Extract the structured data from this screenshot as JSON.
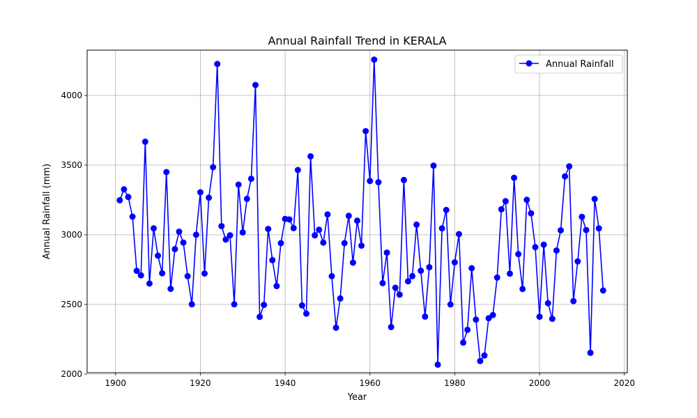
{
  "chart_data": {
    "type": "line",
    "title": "Annual Rainfall Trend in KERALA",
    "xlabel": "Year",
    "ylabel": "Annual Rainfall (mm)",
    "xlim": [
      1893.3,
      2020.7
    ],
    "ylim": [
      2010,
      4325
    ],
    "xticks": [
      1900,
      1920,
      1940,
      1960,
      1980,
      2000,
      2020
    ],
    "yticks": [
      2000,
      2500,
      3000,
      3500,
      4000
    ],
    "grid": true,
    "legend_position": "top-right",
    "series": [
      {
        "name": "Annual Rainfall",
        "color": "#0000ff",
        "marker": "circle",
        "x": [
          1901,
          1902,
          1903,
          1904,
          1905,
          1906,
          1907,
          1908,
          1909,
          1910,
          1911,
          1912,
          1913,
          1914,
          1915,
          1916,
          1917,
          1918,
          1919,
          1920,
          1921,
          1922,
          1923,
          1924,
          1925,
          1926,
          1927,
          1928,
          1929,
          1930,
          1931,
          1932,
          1933,
          1934,
          1935,
          1936,
          1937,
          1938,
          1939,
          1940,
          1941,
          1942,
          1943,
          1944,
          1945,
          1946,
          1947,
          1948,
          1949,
          1950,
          1951,
          1952,
          1953,
          1954,
          1955,
          1956,
          1957,
          1958,
          1959,
          1960,
          1961,
          1962,
          1963,
          1964,
          1965,
          1966,
          1967,
          1968,
          1969,
          1970,
          1971,
          1972,
          1973,
          1974,
          1975,
          1976,
          1977,
          1978,
          1979,
          1980,
          1981,
          1982,
          1983,
          1984,
          1985,
          1986,
          1987,
          1988,
          1989,
          1990,
          1991,
          1992,
          1993,
          1994,
          1995,
          1996,
          1997,
          1998,
          1999,
          2000,
          2001,
          2002,
          2003,
          2004,
          2005,
          2006,
          2007,
          2008,
          2009,
          2010,
          2011,
          2012,
          2013,
          2014,
          2015
        ],
        "values": [
          3248,
          3326,
          3271,
          3130,
          2741,
          2709,
          3668,
          2650,
          3046,
          2850,
          2724,
          3450,
          2612,
          2897,
          3022,
          2944,
          2703,
          2501,
          3000,
          3305,
          2722,
          3266,
          3485,
          4226,
          3062,
          2966,
          2996,
          2501,
          3360,
          3017,
          3258,
          3402,
          4075,
          2411,
          2497,
          3042,
          2818,
          2632,
          2940,
          3114,
          3110,
          3048,
          3465,
          2493,
          2434,
          3563,
          2996,
          3036,
          2944,
          3146,
          2703,
          2333,
          2543,
          2940,
          3136,
          2800,
          3101,
          2922,
          3744,
          3386,
          4257,
          3377,
          2653,
          2872,
          2338,
          2620,
          2570,
          3393,
          2666,
          2703,
          3073,
          2742,
          2413,
          2767,
          3496,
          2068,
          3046,
          3178,
          2500,
          2802,
          3005,
          2226,
          2318,
          2760,
          2391,
          2094,
          2134,
          2401,
          2424,
          2693,
          3183,
          3241,
          2721,
          3409,
          2861,
          2611,
          3251,
          3154,
          2911,
          2412,
          2929,
          2509,
          2397,
          2887,
          3032,
          3419,
          3491,
          2524,
          2809,
          3129,
          3034,
          2153,
          3257,
          3046,
          2600
        ]
      }
    ]
  }
}
